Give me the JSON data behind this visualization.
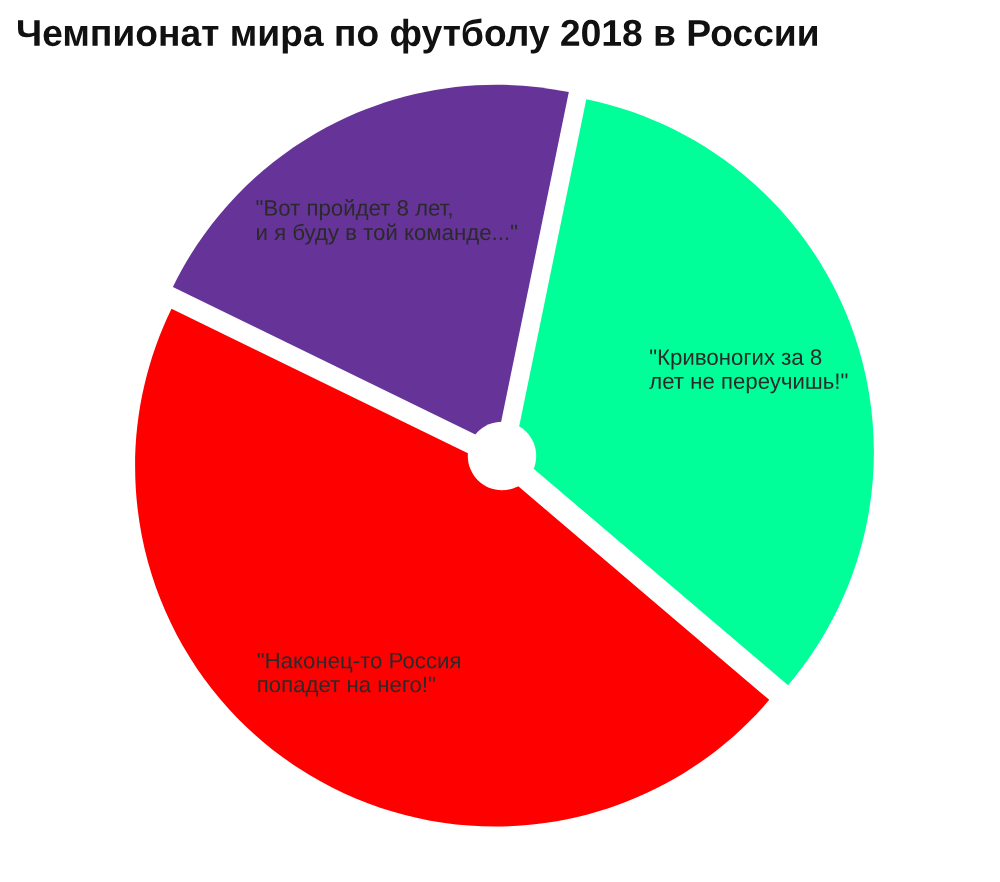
{
  "chart_data": {
    "type": "pie",
    "title": "Чемпионат мира по футболу 2018 в России",
    "categories": [
      "\"Кривоногих за 8\nлет не переучишь!\"",
      "\"Наконец-то Россия\nпопадет на него!\"",
      "\"Вот пройдет 8 лет,\nи я буду в той команде...\""
    ],
    "values": [
      33,
      46,
      21
    ],
    "colors": [
      "#00ff99",
      "#ff0000",
      "#663399"
    ]
  }
}
